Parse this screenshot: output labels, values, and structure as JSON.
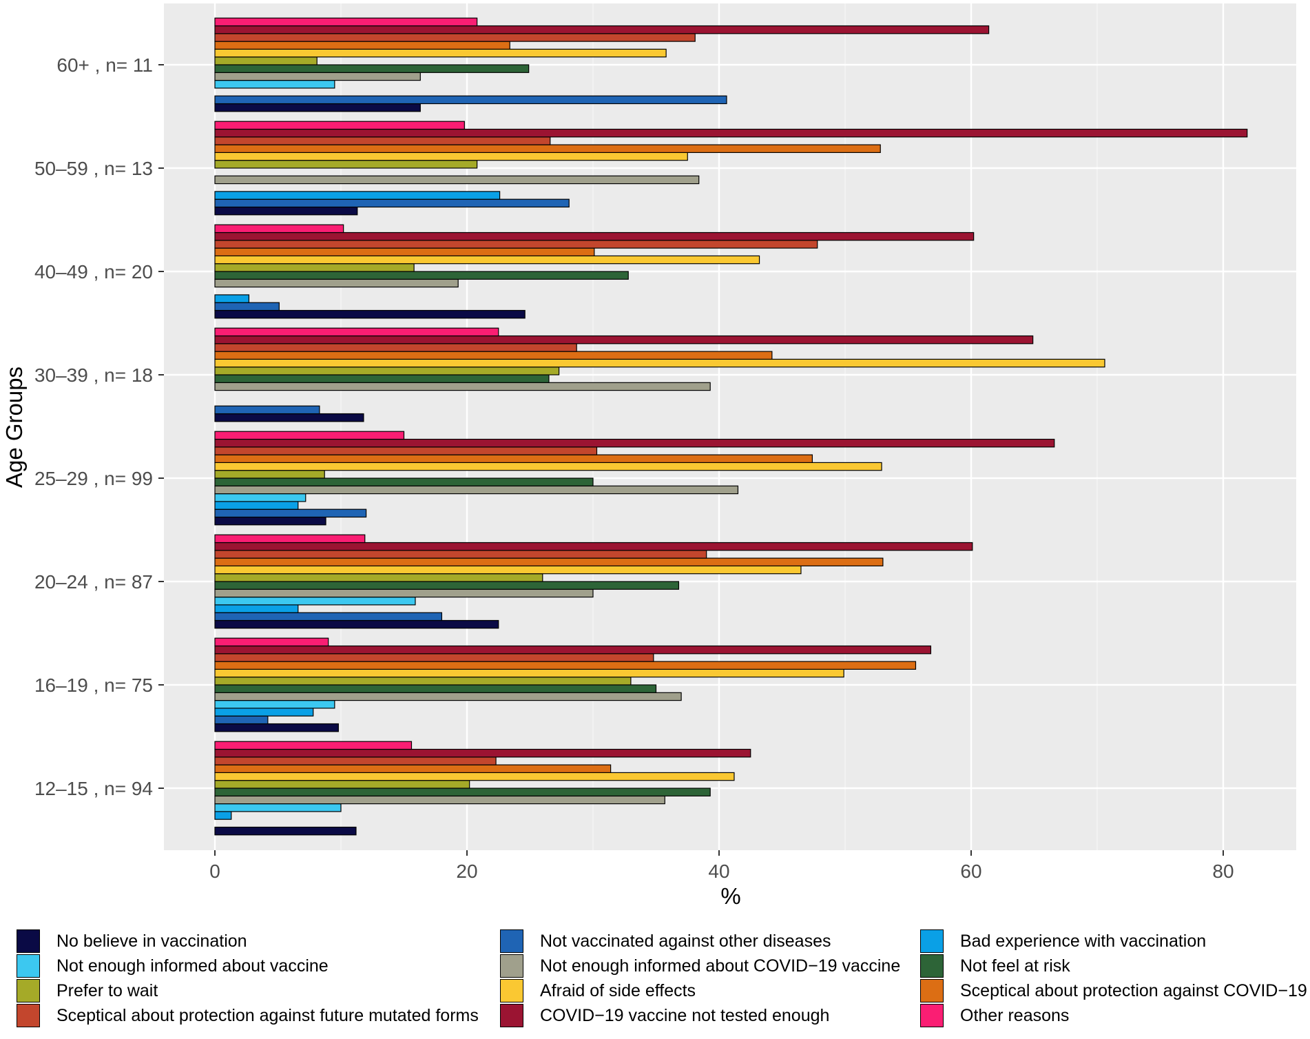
{
  "chart_data": {
    "type": "bar",
    "orientation": "horizontal",
    "title": "",
    "xlabel": "%",
    "ylabel": "Age Groups",
    "xlim": [
      -4,
      86
    ],
    "xticks": [
      0,
      20,
      40,
      60,
      80
    ],
    "grid": true,
    "legend_position": "bottom",
    "categories": [
      "12–15 , n= 94",
      "16–19 , n= 75",
      "20–24 , n= 87",
      "25–29 , n= 99",
      "30–39 , n= 18",
      "40–49 , n= 20",
      "50–59 , n= 13",
      "60+ , n= 11"
    ],
    "series": [
      {
        "name": "No believe in vaccination",
        "color": "#0a0a45",
        "values": [
          11.2,
          9.8,
          22.5,
          8.8,
          11.8,
          24.6,
          11.3,
          16.3
        ]
      },
      {
        "name": "Not vaccinated against other diseases",
        "color": "#1f64b4",
        "values": [
          0,
          4.2,
          18.0,
          12.0,
          8.3,
          5.1,
          28.1,
          40.6
        ]
      },
      {
        "name": "Bad experience with vaccination",
        "color": "#0aa0e6",
        "values": [
          1.3,
          7.8,
          6.6,
          6.6,
          0,
          2.7,
          22.6,
          0
        ]
      },
      {
        "name": "Not enough informed about vaccine",
        "color": "#3cc8f0",
        "values": [
          10.0,
          9.5,
          15.9,
          7.2,
          0,
          0,
          0,
          9.5
        ]
      },
      {
        "name": "Not enough informed about COVID−19 vaccine",
        "color": "#a0a08c",
        "values": [
          35.7,
          37.0,
          30.0,
          41.5,
          39.3,
          19.3,
          38.4,
          16.3
        ]
      },
      {
        "name": "Not feel at risk",
        "color": "#2d6437",
        "values": [
          39.3,
          35.0,
          36.8,
          30.0,
          26.5,
          32.8,
          0,
          24.9
        ]
      },
      {
        "name": "Prefer to wait",
        "color": "#a5aa28",
        "values": [
          20.2,
          33.0,
          26.0,
          8.7,
          27.3,
          15.8,
          20.8,
          8.1
        ]
      },
      {
        "name": "Afraid of side effects",
        "color": "#fac832",
        "values": [
          41.2,
          49.9,
          46.5,
          52.9,
          70.6,
          43.2,
          37.5,
          35.8
        ]
      },
      {
        "name": "Sceptical about protection against COVID−19",
        "color": "#dc6e14",
        "values": [
          31.4,
          55.6,
          53.0,
          47.4,
          44.2,
          30.1,
          52.8,
          23.4
        ]
      },
      {
        "name": "Sceptical about protection against future mutated forms",
        "color": "#c3462d",
        "values": [
          22.3,
          34.8,
          39.0,
          30.3,
          28.7,
          47.8,
          26.6,
          38.1
        ]
      },
      {
        "name": "COVID−19 vaccine not tested enough",
        "color": "#9b1432",
        "values": [
          42.5,
          56.8,
          60.1,
          66.6,
          64.9,
          60.2,
          81.9,
          61.4
        ]
      },
      {
        "name": "Other reasons",
        "color": "#fa1e73",
        "values": [
          15.6,
          9.0,
          11.9,
          15.0,
          22.5,
          10.2,
          19.8,
          20.8
        ]
      }
    ]
  }
}
